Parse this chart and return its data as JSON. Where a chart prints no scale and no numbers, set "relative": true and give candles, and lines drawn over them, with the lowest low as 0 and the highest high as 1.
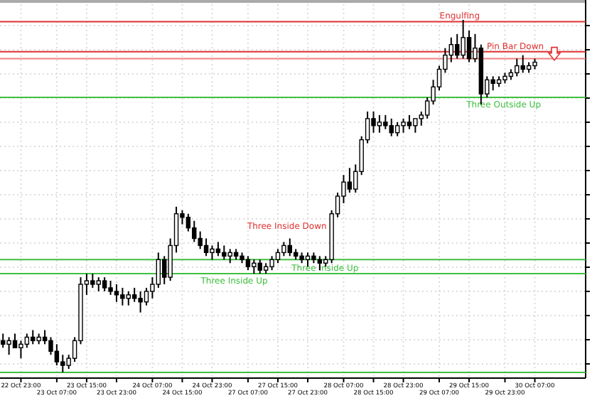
{
  "chart_data": {
    "type": "candlestick",
    "relative": true,
    "grid": true,
    "tick_labels": "x",
    "categories": [
      null,
      null,
      null,
      "22 Oct 23:00",
      null,
      null,
      null,
      null,
      null,
      "23 Oct 07:00",
      null,
      null,
      null,
      null,
      "23 Oct 15:00",
      null,
      null,
      null,
      null,
      "23 Oct 23:00",
      null,
      null,
      null,
      null,
      null,
      "24 Oct 07:00",
      null,
      null,
      null,
      null,
      "24 Oct 15:00",
      null,
      null,
      null,
      null,
      "24 Oct 23:00",
      null,
      null,
      null,
      null,
      null,
      "27 Oct 07:00",
      null,
      null,
      null,
      null,
      "27 Oct 15:00",
      null,
      null,
      null,
      null,
      "27 Oct 23:00",
      null,
      null,
      null,
      null,
      null,
      "28 Oct 07:00",
      null,
      null,
      null,
      null,
      "28 Oct 15:00",
      null,
      null,
      null,
      null,
      "28 Oct 23:00",
      null,
      null,
      null,
      null,
      null,
      "29 Oct 07:00",
      null,
      null,
      null,
      null,
      "29 Oct 15:00",
      null,
      null,
      null,
      null,
      null,
      "29 Oct 23:00",
      null,
      null,
      null,
      null,
      "30 Oct 07:00"
    ],
    "ohlc": [
      [
        0.09,
        0.11,
        0.07,
        0.08
      ],
      [
        0.08,
        0.1,
        0.05,
        0.09
      ],
      [
        0.09,
        0.11,
        0.07,
        0.07
      ],
      [
        0.07,
        0.09,
        0.04,
        0.08
      ],
      [
        0.08,
        0.11,
        0.07,
        0.1
      ],
      [
        0.1,
        0.12,
        0.08,
        0.09
      ],
      [
        0.09,
        0.11,
        0.08,
        0.1
      ],
      [
        0.1,
        0.12,
        0.08,
        0.09
      ],
      [
        0.09,
        0.1,
        0.05,
        0.06
      ],
      [
        0.06,
        0.08,
        0.02,
        0.03
      ],
      [
        0.03,
        0.05,
        0.0,
        0.02
      ],
      [
        0.02,
        0.05,
        0.01,
        0.04
      ],
      [
        0.04,
        0.1,
        0.03,
        0.09
      ],
      [
        0.09,
        0.27,
        0.08,
        0.25
      ],
      [
        0.25,
        0.28,
        0.22,
        0.26
      ],
      [
        0.26,
        0.28,
        0.24,
        0.25
      ],
      [
        0.25,
        0.27,
        0.23,
        0.26
      ],
      [
        0.26,
        0.27,
        0.23,
        0.24
      ],
      [
        0.24,
        0.26,
        0.22,
        0.23
      ],
      [
        0.23,
        0.25,
        0.2,
        0.22
      ],
      [
        0.22,
        0.24,
        0.19,
        0.21
      ],
      [
        0.21,
        0.23,
        0.19,
        0.22
      ],
      [
        0.22,
        0.24,
        0.2,
        0.21
      ],
      [
        0.21,
        0.23,
        0.17,
        0.2
      ],
      [
        0.2,
        0.24,
        0.19,
        0.23
      ],
      [
        0.23,
        0.27,
        0.21,
        0.25
      ],
      [
        0.25,
        0.34,
        0.24,
        0.32
      ],
      [
        0.32,
        0.33,
        0.25,
        0.27
      ],
      [
        0.27,
        0.38,
        0.26,
        0.36
      ],
      [
        0.36,
        0.47,
        0.34,
        0.45
      ],
      [
        0.45,
        0.46,
        0.42,
        0.44
      ],
      [
        0.44,
        0.45,
        0.4,
        0.41
      ],
      [
        0.41,
        0.43,
        0.37,
        0.38
      ],
      [
        0.38,
        0.4,
        0.35,
        0.36
      ],
      [
        0.36,
        0.38,
        0.33,
        0.34
      ],
      [
        0.34,
        0.36,
        0.32,
        0.35
      ],
      [
        0.35,
        0.37,
        0.33,
        0.34
      ],
      [
        0.34,
        0.36,
        0.32,
        0.33
      ],
      [
        0.33,
        0.35,
        0.31,
        0.34
      ],
      [
        0.34,
        0.35,
        0.32,
        0.33
      ],
      [
        0.33,
        0.34,
        0.31,
        0.32
      ],
      [
        0.32,
        0.33,
        0.29,
        0.3
      ],
      [
        0.3,
        0.32,
        0.28,
        0.31
      ],
      [
        0.31,
        0.32,
        0.28,
        0.29
      ],
      [
        0.29,
        0.31,
        0.28,
        0.3
      ],
      [
        0.3,
        0.33,
        0.29,
        0.32
      ],
      [
        0.32,
        0.35,
        0.31,
        0.34
      ],
      [
        0.34,
        0.37,
        0.33,
        0.36
      ],
      [
        0.36,
        0.38,
        0.33,
        0.34
      ],
      [
        0.34,
        0.35,
        0.32,
        0.33
      ],
      [
        0.33,
        0.34,
        0.31,
        0.32
      ],
      [
        0.32,
        0.34,
        0.3,
        0.33
      ],
      [
        0.33,
        0.34,
        0.31,
        0.32
      ],
      [
        0.32,
        0.33,
        0.29,
        0.31
      ],
      [
        0.31,
        0.33,
        0.3,
        0.32
      ],
      [
        0.32,
        0.46,
        0.31,
        0.45
      ],
      [
        0.45,
        0.51,
        0.44,
        0.5
      ],
      [
        0.5,
        0.56,
        0.48,
        0.54
      ],
      [
        0.54,
        0.58,
        0.51,
        0.52
      ],
      [
        0.52,
        0.59,
        0.51,
        0.57
      ],
      [
        0.57,
        0.67,
        0.56,
        0.66
      ],
      [
        0.66,
        0.74,
        0.65,
        0.72
      ],
      [
        0.72,
        0.74,
        0.68,
        0.7
      ],
      [
        0.7,
        0.73,
        0.68,
        0.71
      ],
      [
        0.71,
        0.73,
        0.69,
        0.7
      ],
      [
        0.7,
        0.72,
        0.67,
        0.68
      ],
      [
        0.68,
        0.71,
        0.67,
        0.7
      ],
      [
        0.7,
        0.72,
        0.68,
        0.71
      ],
      [
        0.71,
        0.73,
        0.69,
        0.7
      ],
      [
        0.7,
        0.72,
        0.68,
        0.72
      ],
      [
        0.72,
        0.74,
        0.7,
        0.73
      ],
      [
        0.73,
        0.78,
        0.72,
        0.77
      ],
      [
        0.77,
        0.83,
        0.76,
        0.81
      ],
      [
        0.81,
        0.87,
        0.8,
        0.86
      ],
      [
        0.86,
        0.92,
        0.85,
        0.9
      ],
      [
        0.9,
        0.95,
        0.88,
        0.93
      ],
      [
        0.93,
        0.96,
        0.89,
        0.9
      ],
      [
        0.9,
        1.0,
        0.89,
        0.95
      ],
      [
        0.95,
        0.97,
        0.88,
        0.89
      ],
      [
        0.89,
        0.96,
        0.88,
        0.92
      ],
      [
        0.92,
        0.93,
        0.76,
        0.79
      ],
      [
        0.79,
        0.84,
        0.78,
        0.83
      ],
      [
        0.83,
        0.84,
        0.8,
        0.82
      ],
      [
        0.82,
        0.84,
        0.81,
        0.83
      ],
      [
        0.83,
        0.85,
        0.82,
        0.84
      ],
      [
        0.84,
        0.86,
        0.83,
        0.85
      ],
      [
        0.85,
        0.89,
        0.84,
        0.87
      ],
      [
        0.87,
        0.9,
        0.85,
        0.86
      ],
      [
        0.86,
        0.88,
        0.85,
        0.87
      ],
      [
        0.87,
        0.89,
        0.86,
        0.88
      ]
    ],
    "ref_lines": [
      {
        "axis": "y",
        "value": 0.89,
        "color": "#f08080"
      },
      {
        "axis": "y",
        "value": 0.995,
        "color": "#e03030",
        "label": "Engulfing"
      },
      {
        "axis": "y",
        "value": 0.91,
        "color": "#e03030",
        "label": "Pin Bar Down"
      },
      {
        "axis": "y",
        "value": 0.78,
        "color": "#40c040",
        "label": "Three Outside Up"
      },
      {
        "axis": "y",
        "value": 0.32,
        "color": "#40c040",
        "label": "Three Inside Up"
      },
      {
        "axis": "y",
        "value": 0.28,
        "color": "#40c040",
        "label": "Three Inside Up"
      },
      {
        "axis": "y",
        "value": 0.0,
        "color": "#40c040"
      }
    ],
    "annotations": [
      "Three Inside Down"
    ]
  }
}
